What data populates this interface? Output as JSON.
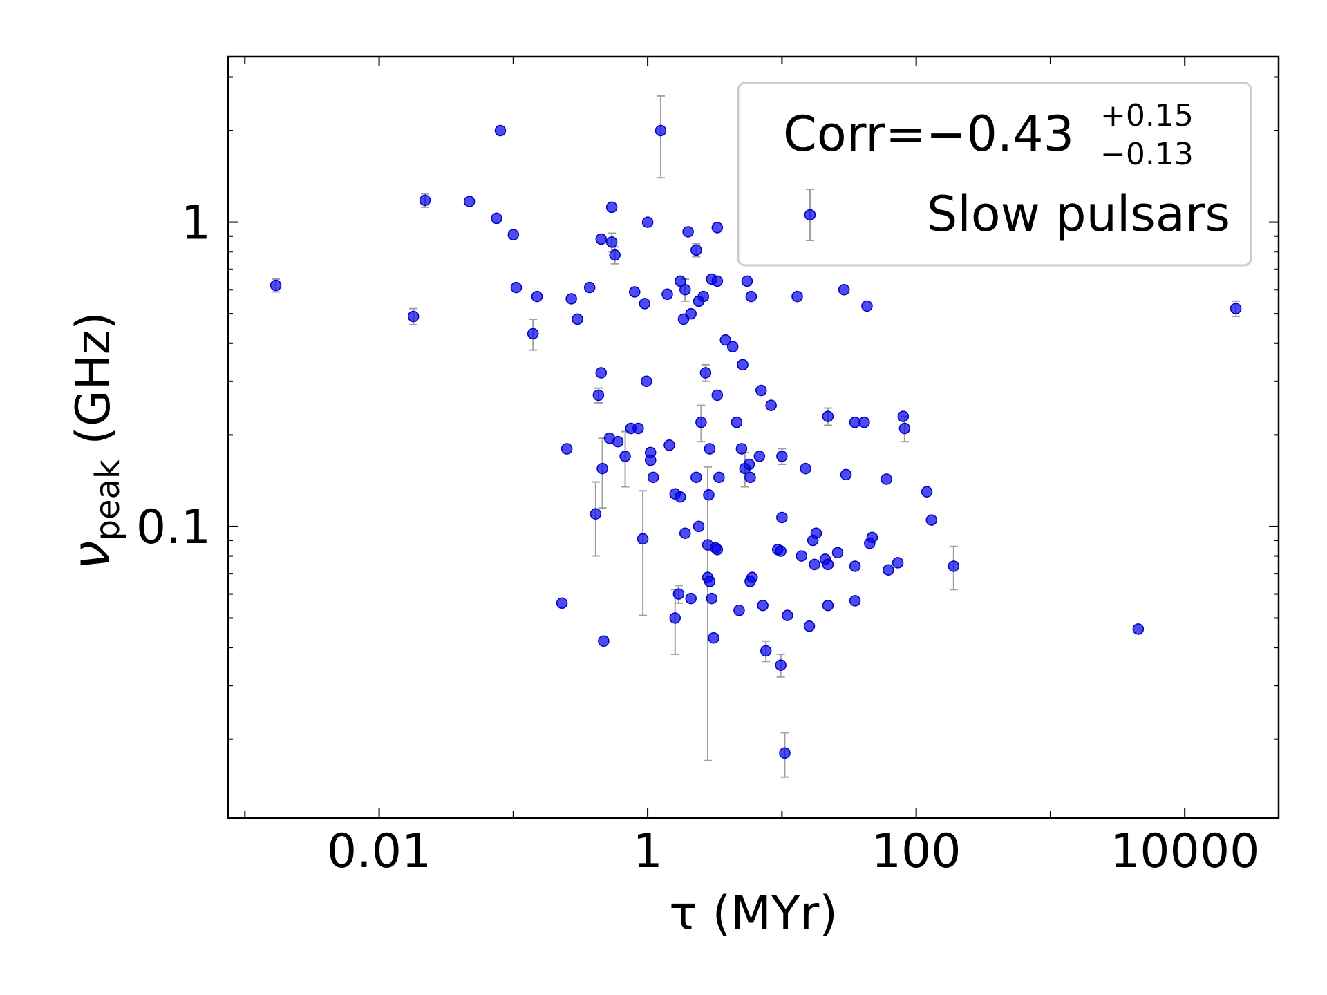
{
  "chart_data": {
    "type": "scatter",
    "xlabel": "τ (MYr)",
    "ylabel_symbol": "ν",
    "ylabel_subscript": "peak",
    "ylabel_unit": " (GHz)",
    "xscale": "log",
    "yscale": "log",
    "xlim": [
      0.00075,
      50000
    ],
    "ylim": [
      0.011,
      3.5
    ],
    "x_tick_labels": [
      "0.01",
      "1",
      "100",
      "10000"
    ],
    "x_tick_values": [
      0.01,
      1,
      100,
      10000
    ],
    "y_tick_labels": [
      "0.1",
      "1"
    ],
    "y_tick_values": [
      0.1,
      1
    ],
    "grid": false,
    "legend_position": "top-right",
    "legend": {
      "corr_prefix": "Corr=",
      "corr_value": "−0.43",
      "corr_plus": "+0.15",
      "corr_minus": "−0.13",
      "series_label": "Slow pulsars"
    },
    "colors": {
      "marker": "#0000ee",
      "errorbar": "#a0a0a0",
      "axes": "#000000"
    },
    "series": [
      {
        "name": "Slow pulsars",
        "points": [
          {
            "x": 0.0017,
            "y": 0.62,
            "yerr": 0.03
          },
          {
            "x": 0.018,
            "y": 0.49,
            "yerr": 0.03
          },
          {
            "x": 0.022,
            "y": 1.18,
            "yerr": 0.06
          },
          {
            "x": 0.047,
            "y": 1.17
          },
          {
            "x": 0.08,
            "y": 2.0
          },
          {
            "x": 0.075,
            "y": 1.03
          },
          {
            "x": 0.1,
            "y": 0.91
          },
          {
            "x": 0.105,
            "y": 0.61
          },
          {
            "x": 0.15,
            "y": 0.57
          },
          {
            "x": 0.14,
            "y": 0.43,
            "yerr": 0.05
          },
          {
            "x": 0.27,
            "y": 0.56
          },
          {
            "x": 0.3,
            "y": 0.48
          },
          {
            "x": 0.37,
            "y": 0.61
          },
          {
            "x": 0.45,
            "y": 0.88
          },
          {
            "x": 0.54,
            "y": 1.12
          },
          {
            "x": 0.54,
            "y": 0.86,
            "yerr": 0.06
          },
          {
            "x": 0.57,
            "y": 0.78,
            "yerr": 0.05
          },
          {
            "x": 0.8,
            "y": 0.59
          },
          {
            "x": 0.95,
            "y": 0.54
          },
          {
            "x": 1.0,
            "y": 1.0
          },
          {
            "x": 1.25,
            "y": 2.0,
            "yerr": 0.6
          },
          {
            "x": 1.4,
            "y": 0.58
          },
          {
            "x": 1.75,
            "y": 0.64
          },
          {
            "x": 1.9,
            "y": 0.6,
            "yerr": 0.05
          },
          {
            "x": 1.85,
            "y": 0.48
          },
          {
            "x": 2.1,
            "y": 0.5
          },
          {
            "x": 2.4,
            "y": 0.55
          },
          {
            "x": 2.6,
            "y": 0.57
          },
          {
            "x": 2.0,
            "y": 0.93
          },
          {
            "x": 2.3,
            "y": 0.81,
            "yerr": 0.04
          },
          {
            "x": 3.3,
            "y": 0.96
          },
          {
            "x": 3.0,
            "y": 0.65
          },
          {
            "x": 3.3,
            "y": 0.64
          },
          {
            "x": 5.5,
            "y": 0.64
          },
          {
            "x": 5.9,
            "y": 0.57
          },
          {
            "x": 13.0,
            "y": 0.57
          },
          {
            "x": 29.0,
            "y": 0.6
          },
          {
            "x": 43.0,
            "y": 0.53
          },
          {
            "x": 0.45,
            "y": 0.32
          },
          {
            "x": 0.43,
            "y": 0.27,
            "yerr": 0.015
          },
          {
            "x": 0.98,
            "y": 0.3
          },
          {
            "x": 2.7,
            "y": 0.32,
            "yerr": 0.02
          },
          {
            "x": 3.8,
            "y": 0.41
          },
          {
            "x": 4.3,
            "y": 0.39
          },
          {
            "x": 5.1,
            "y": 0.34
          },
          {
            "x": 7.0,
            "y": 0.28
          },
          {
            "x": 8.3,
            "y": 0.25
          },
          {
            "x": 3.3,
            "y": 0.27
          },
          {
            "x": 2.5,
            "y": 0.22,
            "yerr": 0.03
          },
          {
            "x": 4.6,
            "y": 0.22
          },
          {
            "x": 22.0,
            "y": 0.23,
            "yerr": 0.015
          },
          {
            "x": 35.0,
            "y": 0.22
          },
          {
            "x": 41.0,
            "y": 0.22
          },
          {
            "x": 80.0,
            "y": 0.23
          },
          {
            "x": 82.0,
            "y": 0.21,
            "yerr": 0.02
          },
          {
            "x": 0.25,
            "y": 0.18
          },
          {
            "x": 0.46,
            "y": 0.155,
            "yerr": 0.04
          },
          {
            "x": 0.52,
            "y": 0.195
          },
          {
            "x": 0.6,
            "y": 0.19
          },
          {
            "x": 0.68,
            "y": 0.17,
            "yerr": 0.035
          },
          {
            "x": 0.75,
            "y": 0.21
          },
          {
            "x": 0.85,
            "y": 0.21
          },
          {
            "x": 1.05,
            "y": 0.175
          },
          {
            "x": 1.05,
            "y": 0.165
          },
          {
            "x": 1.1,
            "y": 0.145
          },
          {
            "x": 1.45,
            "y": 0.185
          },
          {
            "x": 2.9,
            "y": 0.18
          },
          {
            "x": 5.0,
            "y": 0.18
          },
          {
            "x": 6.8,
            "y": 0.17
          },
          {
            "x": 5.7,
            "y": 0.16
          },
          {
            "x": 5.3,
            "y": 0.155,
            "yerr": 0.02
          },
          {
            "x": 5.8,
            "y": 0.145
          },
          {
            "x": 10.0,
            "y": 0.17,
            "yerr": 0.01
          },
          {
            "x": 15.0,
            "y": 0.155
          },
          {
            "x": 30.0,
            "y": 0.148
          },
          {
            "x": 60.0,
            "y": 0.143
          },
          {
            "x": 120.0,
            "y": 0.13
          },
          {
            "x": 130.0,
            "y": 0.105
          },
          {
            "x": 0.41,
            "y": 0.11,
            "yerr": 0.03
          },
          {
            "x": 0.92,
            "y": 0.091,
            "yerr": 0.04
          },
          {
            "x": 1.6,
            "y": 0.128
          },
          {
            "x": 1.75,
            "y": 0.125
          },
          {
            "x": 2.3,
            "y": 0.145
          },
          {
            "x": 2.85,
            "y": 0.127
          },
          {
            "x": 3.4,
            "y": 0.145
          },
          {
            "x": 2.4,
            "y": 0.1
          },
          {
            "x": 1.9,
            "y": 0.095
          },
          {
            "x": 2.8,
            "y": 0.087,
            "yerr": 0.07
          },
          {
            "x": 3.2,
            "y": 0.085
          },
          {
            "x": 3.3,
            "y": 0.084
          },
          {
            "x": 10.0,
            "y": 0.107
          },
          {
            "x": 9.3,
            "y": 0.084
          },
          {
            "x": 9.8,
            "y": 0.083
          },
          {
            "x": 14.0,
            "y": 0.08
          },
          {
            "x": 17.0,
            "y": 0.09
          },
          {
            "x": 18.0,
            "y": 0.095
          },
          {
            "x": 17.5,
            "y": 0.075
          },
          {
            "x": 21.0,
            "y": 0.078
          },
          {
            "x": 22.0,
            "y": 0.075
          },
          {
            "x": 26.0,
            "y": 0.082
          },
          {
            "x": 35.0,
            "y": 0.074
          },
          {
            "x": 45.0,
            "y": 0.088
          },
          {
            "x": 47.0,
            "y": 0.092
          },
          {
            "x": 62.0,
            "y": 0.072
          },
          {
            "x": 73.0,
            "y": 0.076
          },
          {
            "x": 190.0,
            "y": 0.074,
            "yerr": 0.012
          },
          {
            "x": 0.23,
            "y": 0.056
          },
          {
            "x": 0.47,
            "y": 0.042
          },
          {
            "x": 1.7,
            "y": 0.06,
            "yerr": 0.004
          },
          {
            "x": 1.6,
            "y": 0.05,
            "yerr": 0.012
          },
          {
            "x": 2.1,
            "y": 0.058
          },
          {
            "x": 2.8,
            "y": 0.068
          },
          {
            "x": 2.9,
            "y": 0.066
          },
          {
            "x": 3.0,
            "y": 0.058
          },
          {
            "x": 3.1,
            "y": 0.043
          },
          {
            "x": 4.8,
            "y": 0.053
          },
          {
            "x": 5.8,
            "y": 0.066
          },
          {
            "x": 6.0,
            "y": 0.068
          },
          {
            "x": 7.2,
            "y": 0.055
          },
          {
            "x": 11.0,
            "y": 0.051
          },
          {
            "x": 16.0,
            "y": 0.047
          },
          {
            "x": 22.0,
            "y": 0.055
          },
          {
            "x": 35.0,
            "y": 0.057
          },
          {
            "x": 7.6,
            "y": 0.039,
            "yerr": 0.003
          },
          {
            "x": 9.8,
            "y": 0.035,
            "yerr": 0.003
          },
          {
            "x": 4500.0,
            "y": 0.046
          },
          {
            "x": 10.5,
            "y": 0.018,
            "yerr": 0.003
          },
          {
            "x": 24000.0,
            "y": 0.52,
            "yerr": 0.03
          }
        ]
      }
    ]
  }
}
